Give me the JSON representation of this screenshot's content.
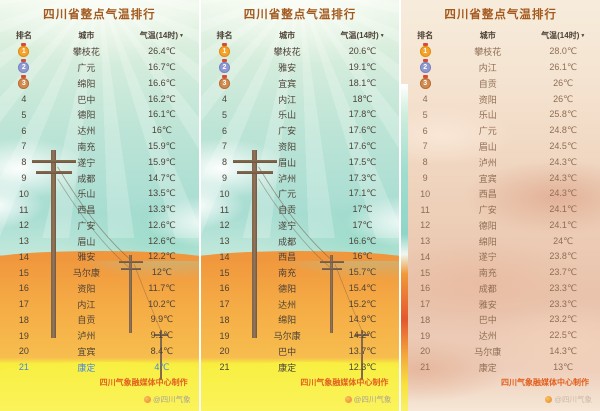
{
  "ui": {
    "sort_icon": "▼",
    "credit": "四川气象融媒体中心制作",
    "watermark": "@四川气象"
  },
  "colors": {
    "title_text": "#a4591e",
    "body_text": "#4d4237",
    "panel3_text": "#8f6e54",
    "credit_text": "#e2601f",
    "highlight_blue": "#4a86d8",
    "medal_gold": "#f5a32a",
    "medal_silver": "#8f98cf",
    "medal_bronze": "#d08a4e"
  },
  "panels": [
    {
      "style": "green",
      "highlight": {
        "rank": "21",
        "color": "blue"
      }
    },
    {
      "style": "green"
    },
    {
      "style": "sunset"
    }
  ],
  "chart_data": [
    {
      "type": "table",
      "title": "四川省整点气温排行",
      "columns": [
        "排名",
        "城市",
        "气温(14时)"
      ],
      "rows": [
        [
          "1",
          "攀枝花",
          "26.4℃"
        ],
        [
          "2",
          "广元",
          "16.7℃"
        ],
        [
          "3",
          "绵阳",
          "16.6℃"
        ],
        [
          "4",
          "巴中",
          "16.2℃"
        ],
        [
          "5",
          "德阳",
          "16.1℃"
        ],
        [
          "6",
          "达州",
          "16℃"
        ],
        [
          "7",
          "南充",
          "15.9℃"
        ],
        [
          "8",
          "遂宁",
          "15.9℃"
        ],
        [
          "9",
          "成都",
          "14.7℃"
        ],
        [
          "10",
          "乐山",
          "13.5℃"
        ],
        [
          "11",
          "西昌",
          "13.3℃"
        ],
        [
          "12",
          "广安",
          "12.6℃"
        ],
        [
          "13",
          "眉山",
          "12.6℃"
        ],
        [
          "14",
          "雅安",
          "12.2℃"
        ],
        [
          "15",
          "马尔康",
          "12℃"
        ],
        [
          "16",
          "资阳",
          "11.7℃"
        ],
        [
          "17",
          "内江",
          "10.2℃"
        ],
        [
          "18",
          "自贡",
          "9.9℃"
        ],
        [
          "19",
          "泸州",
          "9.1℃"
        ],
        [
          "20",
          "宜宾",
          "8.4℃"
        ],
        [
          "21",
          "康定",
          "4℃"
        ]
      ]
    },
    {
      "type": "table",
      "title": "四川省整点气温排行",
      "columns": [
        "排名",
        "城市",
        "气温(14时)"
      ],
      "rows": [
        [
          "1",
          "攀枝花",
          "20.6℃"
        ],
        [
          "2",
          "雅安",
          "19.1℃"
        ],
        [
          "3",
          "宜宾",
          "18.1℃"
        ],
        [
          "4",
          "内江",
          "18℃"
        ],
        [
          "5",
          "乐山",
          "17.8℃"
        ],
        [
          "6",
          "广安",
          "17.6℃"
        ],
        [
          "7",
          "资阳",
          "17.6℃"
        ],
        [
          "8",
          "眉山",
          "17.5℃"
        ],
        [
          "9",
          "泸州",
          "17.3℃"
        ],
        [
          "10",
          "广元",
          "17.1℃"
        ],
        [
          "11",
          "自贡",
          "17℃"
        ],
        [
          "12",
          "遂宁",
          "17℃"
        ],
        [
          "13",
          "成都",
          "16.6℃"
        ],
        [
          "14",
          "西昌",
          "16℃"
        ],
        [
          "15",
          "南充",
          "15.7℃"
        ],
        [
          "16",
          "德阳",
          "15.4℃"
        ],
        [
          "17",
          "达州",
          "15.2℃"
        ],
        [
          "18",
          "绵阳",
          "14.9℃"
        ],
        [
          "19",
          "马尔康",
          "14.2℃"
        ],
        [
          "20",
          "巴中",
          "13.7℃"
        ],
        [
          "21",
          "康定",
          "12.3℃"
        ]
      ]
    },
    {
      "type": "table",
      "title": "四川省整点气温排行",
      "columns": [
        "排名",
        "城市",
        "气温(14时)"
      ],
      "rows": [
        [
          "1",
          "攀枝花",
          "28.0℃"
        ],
        [
          "2",
          "内江",
          "26.1℃"
        ],
        [
          "3",
          "自贡",
          "26℃"
        ],
        [
          "4",
          "资阳",
          "26℃"
        ],
        [
          "5",
          "乐山",
          "25.8℃"
        ],
        [
          "6",
          "广元",
          "24.8℃"
        ],
        [
          "7",
          "眉山",
          "24.5℃"
        ],
        [
          "8",
          "泸州",
          "24.3℃"
        ],
        [
          "9",
          "宜宾",
          "24.3℃"
        ],
        [
          "10",
          "西昌",
          "24.3℃"
        ],
        [
          "11",
          "广安",
          "24.1℃"
        ],
        [
          "12",
          "德阳",
          "24.1℃"
        ],
        [
          "13",
          "绵阳",
          "24℃"
        ],
        [
          "14",
          "遂宁",
          "23.8℃"
        ],
        [
          "15",
          "南充",
          "23.7℃"
        ],
        [
          "16",
          "成都",
          "23.3℃"
        ],
        [
          "17",
          "雅安",
          "23.3℃"
        ],
        [
          "18",
          "巴中",
          "23.2℃"
        ],
        [
          "19",
          "达州",
          "22.5℃"
        ],
        [
          "20",
          "马尔康",
          "14.3℃"
        ],
        [
          "21",
          "康定",
          "13℃"
        ]
      ]
    }
  ]
}
